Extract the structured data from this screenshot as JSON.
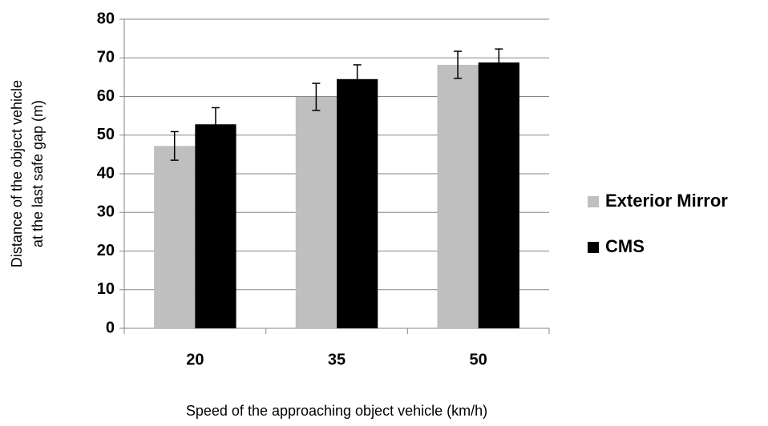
{
  "chart_data": {
    "type": "bar",
    "categories": [
      "20",
      "35",
      "50"
    ],
    "series": [
      {
        "name": "Exterior Mirror",
        "color": "#bfbfbf",
        "values": [
          47.2,
          59.9,
          68.2
        ],
        "errors": [
          3.7,
          3.5,
          3.5
        ]
      },
      {
        "name": "CMS",
        "color": "#000000",
        "values": [
          52.8,
          64.5,
          68.8
        ],
        "errors": [
          4.3,
          3.7,
          3.5
        ]
      }
    ],
    "xlabel": "Speed of the approaching object vehicle (km/h)",
    "ylabel": [
      "Distance of the object vehicle",
      "at the last safe gap (m)"
    ],
    "ylim": [
      0,
      80
    ],
    "yticks": [
      0,
      10,
      20,
      30,
      40,
      50,
      60,
      70,
      80
    ],
    "grid": true,
    "legend": "right"
  }
}
